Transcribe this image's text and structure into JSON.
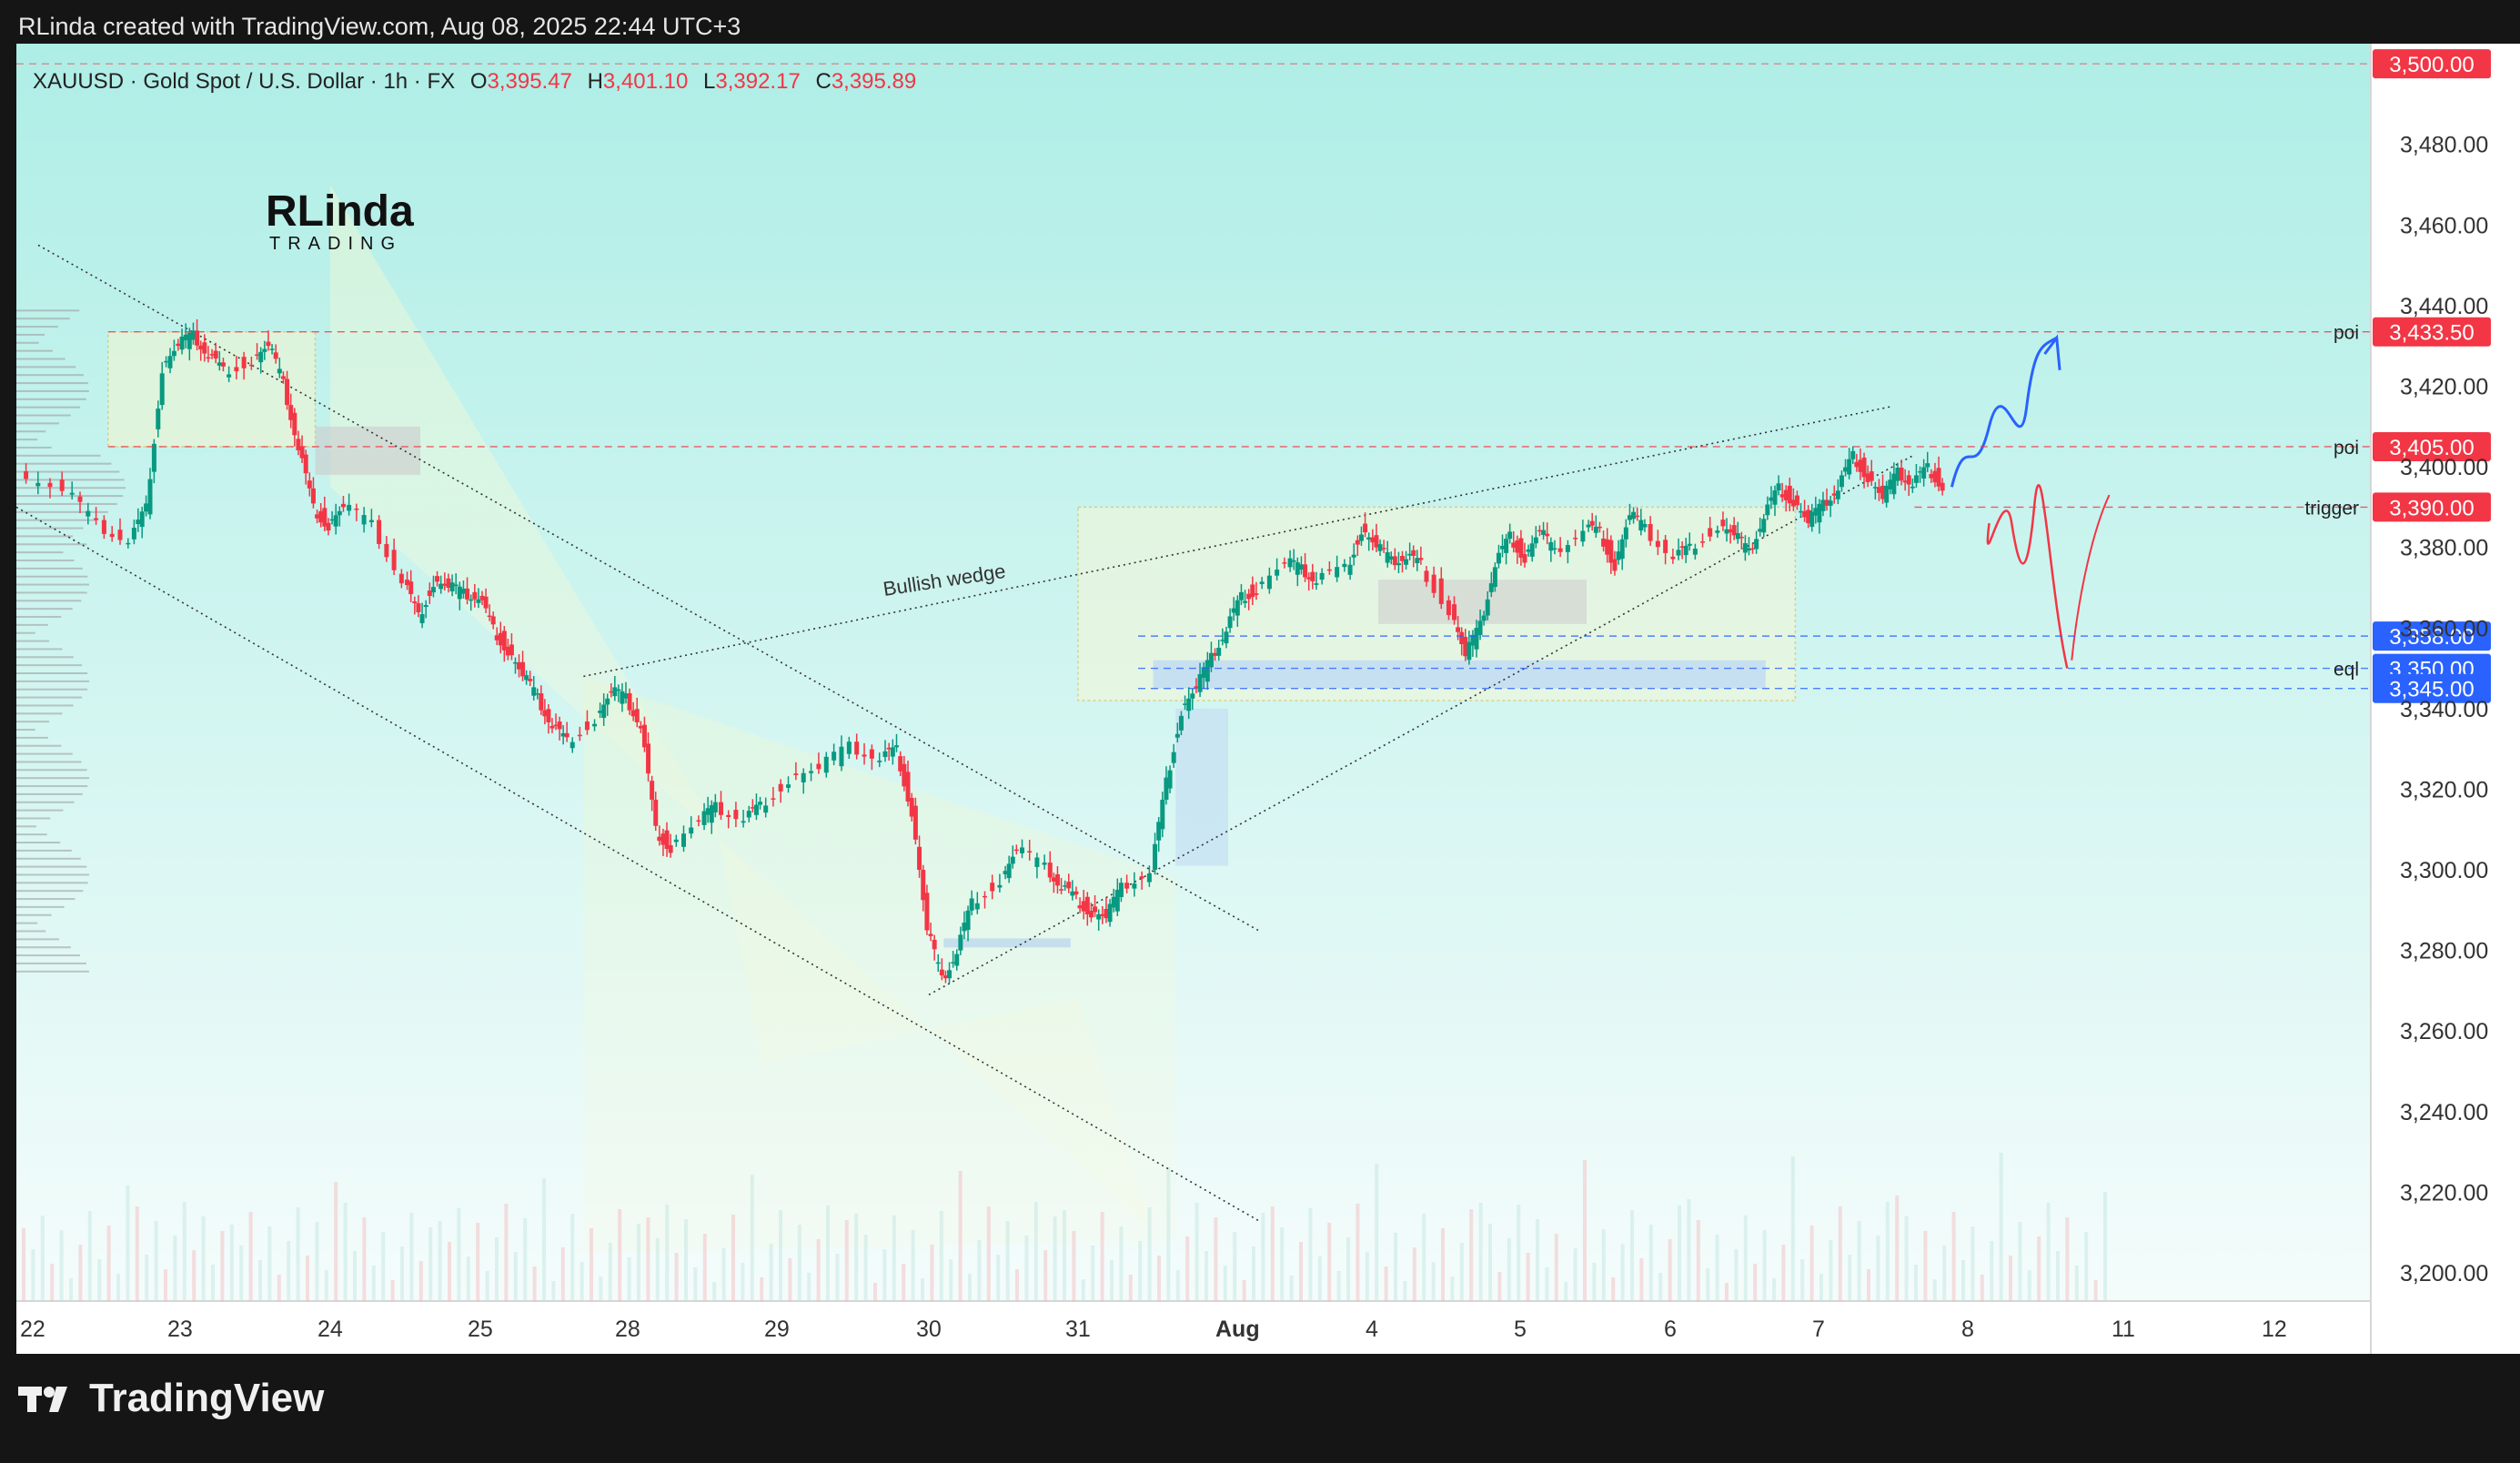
{
  "credit": "RLinda created with TradingView.com, Aug 08, 2025 22:44 UTC+3",
  "footer_logo": "TradingView",
  "author_logo": {
    "line1": "RLinda",
    "line2": "TRADING"
  },
  "header": {
    "symbol": "XAUUSD · Gold Spot / U.S. Dollar · 1h · FX",
    "o_label": "O",
    "o": "3,395.47",
    "h_label": "H",
    "h": "3,401.10",
    "l_label": "L",
    "l": "3,392.17",
    "c_label": "C",
    "c": "3,395.89"
  },
  "colors": {
    "up": "#089981",
    "down": "#f23645",
    "axis_text": "#333333",
    "price_tag": "#f23645",
    "blue_tag": "#2962ff",
    "bg_top": "#aeeee6",
    "bg_bottom": "#f2fbfa"
  },
  "chart_data": {
    "type": "candlestick",
    "y_range": [
      3193,
      3505
    ],
    "y_ticks": [
      "3,200.00",
      "3,220.00",
      "3,240.00",
      "3,260.00",
      "3,280.00",
      "3,300.00",
      "3,320.00",
      "3,340.00",
      "3,360.00",
      "3,380.00",
      "3,400.00",
      "3,420.00",
      "3,440.00",
      "3,460.00",
      "3,480.00"
    ],
    "y_tick_values": [
      3200,
      3220,
      3240,
      3260,
      3280,
      3300,
      3320,
      3340,
      3360,
      3380,
      3400,
      3420,
      3440,
      3460,
      3480
    ],
    "x_labels": [
      "22",
      "23",
      "24",
      "25",
      "28",
      "29",
      "30",
      "31",
      "Aug",
      "4",
      "5",
      "6",
      "7",
      "8",
      "11",
      "12"
    ],
    "price_path": [
      [
        22.0,
        3398
      ],
      [
        22.3,
        3394
      ],
      [
        22.5,
        3385
      ],
      [
        22.7,
        3382
      ],
      [
        22.8,
        3390
      ],
      [
        22.9,
        3425
      ],
      [
        23.0,
        3430
      ],
      [
        23.1,
        3432
      ],
      [
        23.2,
        3428
      ],
      [
        23.3,
        3424
      ],
      [
        23.5,
        3427
      ],
      [
        23.6,
        3430
      ],
      [
        23.7,
        3420
      ],
      [
        23.8,
        3405
      ],
      [
        23.9,
        3390
      ],
      [
        24.0,
        3386
      ],
      [
        24.1,
        3390
      ],
      [
        24.3,
        3385
      ],
      [
        24.5,
        3372
      ],
      [
        24.6,
        3363
      ],
      [
        24.7,
        3372
      ],
      [
        24.8,
        3370
      ],
      [
        24.9,
        3368
      ],
      [
        25.0,
        3368
      ],
      [
        25.1,
        3360
      ],
      [
        25.2,
        3355
      ],
      [
        25.3,
        3348
      ],
      [
        25.4,
        3342
      ],
      [
        25.5,
        3336
      ],
      [
        25.6,
        3332
      ],
      [
        25.8,
        3338
      ],
      [
        25.9,
        3344
      ],
      [
        26.0,
        3342
      ],
      [
        26.1,
        3336
      ],
      [
        26.2,
        3310
      ],
      [
        26.3,
        3306
      ],
      [
        26.5,
        3312
      ],
      [
        26.6,
        3315
      ],
      [
        26.8,
        3313
      ],
      [
        26.9,
        3316
      ],
      [
        27.1,
        3323
      ],
      [
        27.3,
        3325
      ],
      [
        27.5,
        3330
      ],
      [
        27.7,
        3328
      ],
      [
        27.8,
        3330
      ],
      [
        27.9,
        3315
      ],
      [
        28.0,
        3285
      ],
      [
        28.1,
        3272
      ],
      [
        28.2,
        3280
      ],
      [
        28.3,
        3292
      ],
      [
        28.5,
        3298
      ],
      [
        28.6,
        3305
      ],
      [
        28.8,
        3300
      ],
      [
        28.9,
        3296
      ],
      [
        29.0,
        3293
      ],
      [
        29.1,
        3290
      ],
      [
        29.2,
        3288
      ],
      [
        29.3,
        3295
      ],
      [
        29.5,
        3300
      ],
      [
        29.6,
        3322
      ],
      [
        29.7,
        3340
      ],
      [
        29.8,
        3345
      ],
      [
        29.9,
        3352
      ],
      [
        30.0,
        3360
      ],
      [
        30.1,
        3368
      ],
      [
        30.2,
        3370
      ],
      [
        30.4,
        3376
      ],
      [
        30.5,
        3374
      ],
      [
        30.6,
        3372
      ],
      [
        30.8,
        3375
      ],
      [
        30.9,
        3385
      ],
      [
        31.0,
        3380
      ],
      [
        31.1,
        3376
      ],
      [
        31.2,
        3378
      ],
      [
        31.3,
        3376
      ],
      [
        31.5,
        3365
      ],
      [
        31.6,
        3353
      ],
      [
        31.7,
        3360
      ],
      [
        31.8,
        3376
      ],
      [
        31.9,
        3383
      ],
      [
        32.0,
        3378
      ],
      [
        32.1,
        3384
      ],
      [
        32.2,
        3378
      ],
      [
        32.4,
        3385
      ],
      [
        32.5,
        3384
      ],
      [
        32.6,
        3376
      ],
      [
        32.7,
        3388
      ],
      [
        32.8,
        3384
      ],
      [
        33.0,
        3378
      ],
      [
        33.1,
        3380
      ],
      [
        33.3,
        3386
      ],
      [
        33.4,
        3383
      ],
      [
        33.5,
        3378
      ],
      [
        33.6,
        3388
      ],
      [
        33.7,
        3395
      ],
      [
        33.8,
        3392
      ],
      [
        33.9,
        3386
      ],
      [
        34.0,
        3390
      ],
      [
        34.1,
        3395
      ],
      [
        34.2,
        3403
      ],
      [
        34.3,
        3398
      ],
      [
        34.4,
        3392
      ],
      [
        34.5,
        3398
      ],
      [
        34.6,
        3396
      ],
      [
        34.7,
        3400
      ],
      [
        34.8,
        3395.89
      ]
    ],
    "levels": [
      {
        "label": "poi",
        "price": "3,433.50",
        "value": 3433.5,
        "tag": "red"
      },
      {
        "label": "poi",
        "price": "3,405.00",
        "value": 3405,
        "tag": "red"
      },
      {
        "label": "trigger",
        "price": "3,390.00",
        "value": 3390,
        "tag": "red"
      },
      {
        "label": "",
        "price": "3,358.00",
        "value": 3358,
        "tag": "blue"
      },
      {
        "label": "eql",
        "price": "3,350.00",
        "value": 3350,
        "tag": "blue"
      },
      {
        "label": "",
        "price": "3,345.00",
        "value": 3345,
        "tag": "blue"
      },
      {
        "label": "",
        "price": "3,500.00",
        "value": 3500,
        "tag": "red"
      }
    ],
    "annotations": [
      {
        "text": "Bullish wedge"
      }
    ],
    "grid": false,
    "legend": "none"
  }
}
